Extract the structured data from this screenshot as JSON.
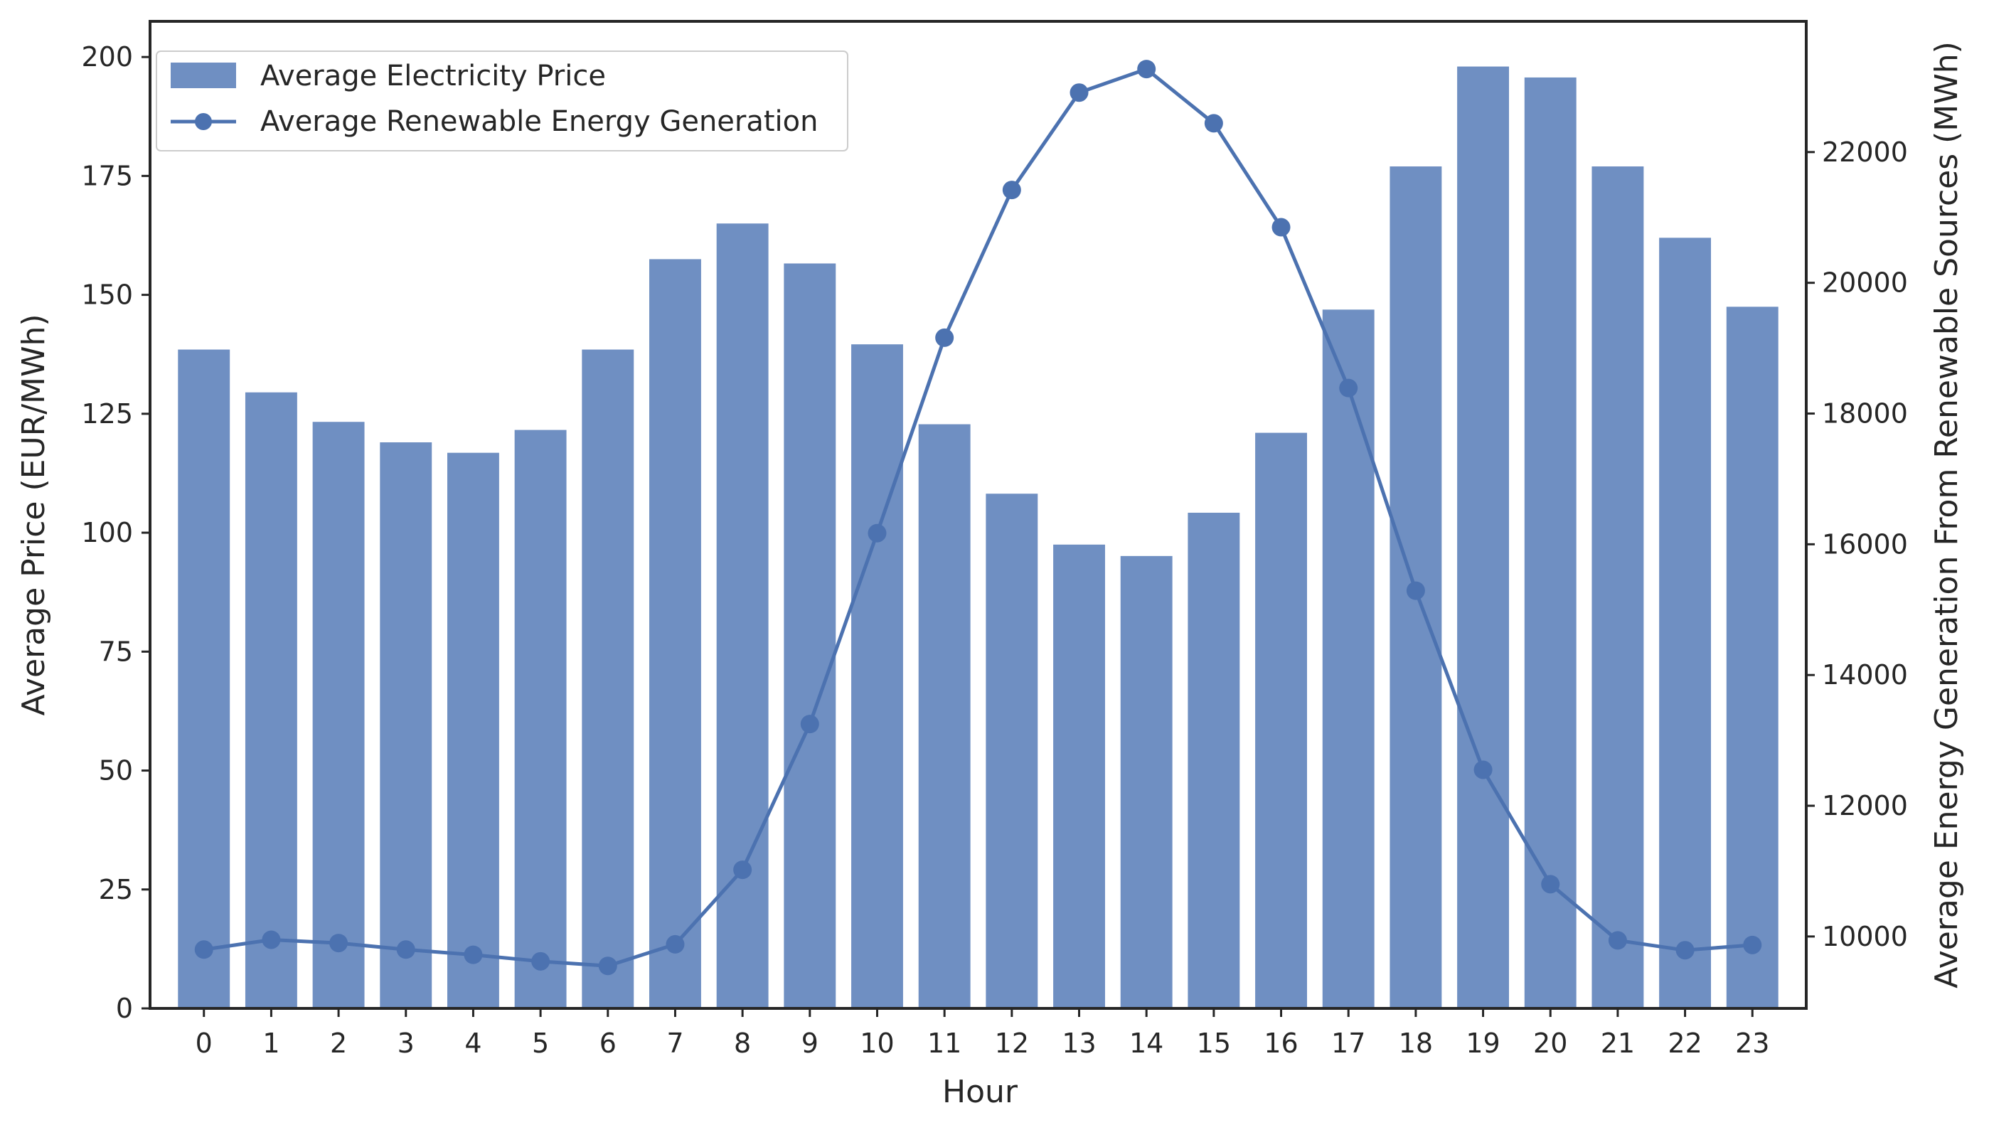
{
  "chart_data": {
    "type": "bar",
    "title": "",
    "xlabel": "Hour",
    "ylabel": "Average Price (EUR/MWh)",
    "y2label": "Average Energy Generation From Renewable Sources (MWh)",
    "categories": [
      "0",
      "1",
      "2",
      "3",
      "4",
      "5",
      "6",
      "7",
      "8",
      "9",
      "10",
      "11",
      "12",
      "13",
      "14",
      "15",
      "16",
      "17",
      "18",
      "19",
      "20",
      "21",
      "22",
      "23"
    ],
    "ylim": [
      0,
      207.5
    ],
    "yticks": [
      0,
      25,
      50,
      75,
      100,
      125,
      150,
      175,
      200
    ],
    "y2lim": [
      8900,
      24000
    ],
    "y2ticks": [
      10000,
      12000,
      14000,
      16000,
      18000,
      20000,
      22000
    ],
    "grid": false,
    "legend_position": "upper-left",
    "series": [
      {
        "name": "Average Electricity Price",
        "type": "bar",
        "axis": "left",
        "color": "#6f8fc2",
        "values": [
          138.5,
          129.5,
          123.3,
          119.0,
          116.8,
          121.6,
          138.5,
          157.5,
          165.0,
          156.6,
          139.6,
          122.8,
          108.2,
          97.5,
          95.1,
          104.2,
          121.0,
          146.9,
          177.0,
          198.0,
          195.7,
          177.0,
          162.0,
          147.5
        ]
      },
      {
        "name": "Average Renewable Energy Generation",
        "type": "line",
        "axis": "right",
        "color": "#4c72b0",
        "values": [
          9800,
          9950,
          9900,
          9800,
          9720,
          9620,
          9550,
          9880,
          11020,
          13250,
          16170,
          19160,
          21420,
          22910,
          23270,
          22440,
          20850,
          18390,
          15290,
          12550,
          10800,
          9940,
          9790,
          9870
        ]
      }
    ]
  }
}
